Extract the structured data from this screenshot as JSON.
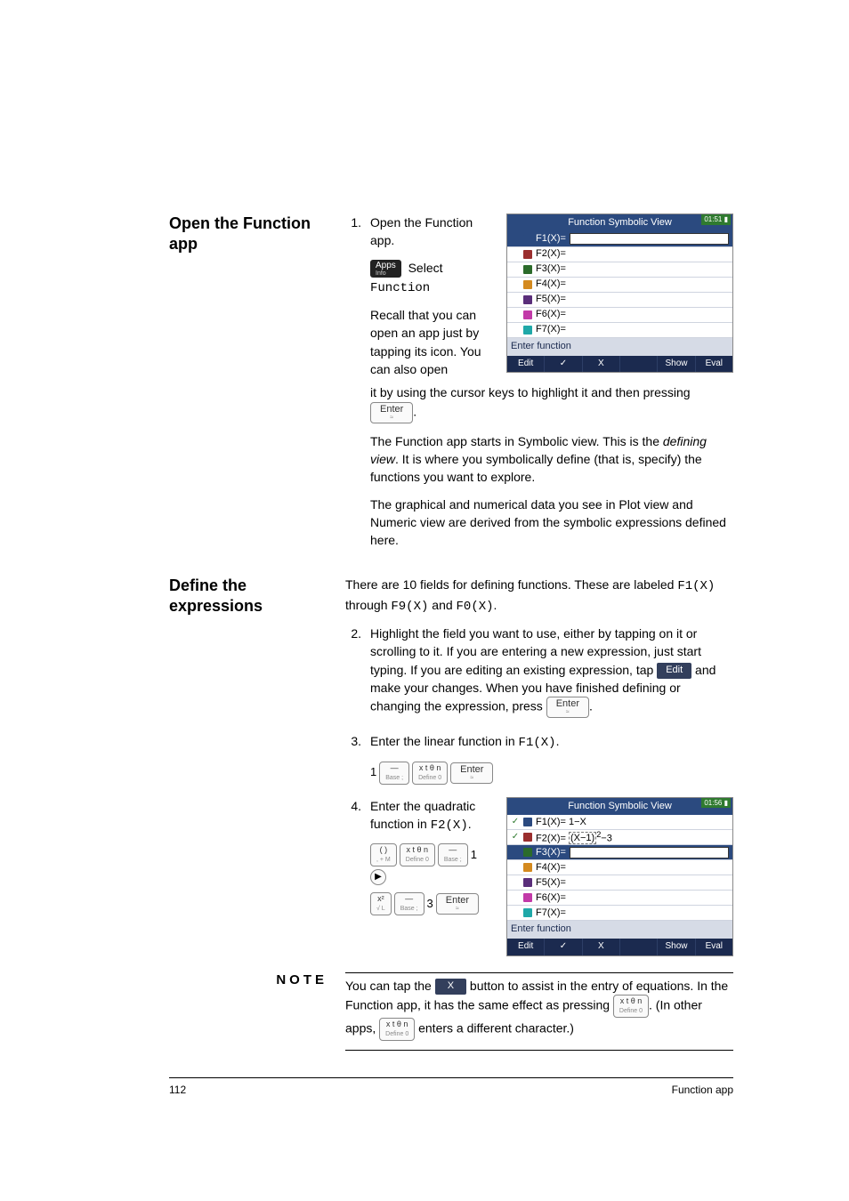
{
  "section1": {
    "heading": "Open the Function app",
    "step_num": "1.",
    "step_text": "Open the Function app.",
    "select_word": "Select",
    "func_word": "Function",
    "apps_key": "Apps",
    "apps_sub": "Info",
    "recall_para": "Recall that you can open an app just by tapping its icon. You can also open it by using the cursor keys to highlight it and then pressing ",
    "recall_para_end": ".",
    "enter_key": "Enter",
    "enter_sub": "≈",
    "para2": "The Function app starts in Symbolic view. This is the ",
    "para2_it": "defining view",
    "para2_rest": ". It is where you symbolically define (that is, specify) the functions you want to explore.",
    "para3": "The graphical and numerical data you see in Plot view and Numeric view are derived from the symbolic expressions defined here."
  },
  "calc1": {
    "title": "Function Symbolic View",
    "time": "01:51",
    "battery": "▮",
    "c1": "#2b4a7f",
    "l1": "F1(X)=",
    "c2": "#9a2e2e",
    "l2": "F2(X)=",
    "c3": "#2b6b2b",
    "l3": "F3(X)=",
    "c4": "#d48a1f",
    "l4": "F4(X)=",
    "c5": "#5a2e7a",
    "l5": "F5(X)=",
    "c6": "#c23aa8",
    "l6": "F6(X)=",
    "c7": "#1fa8a8",
    "l7": "F7(X)=",
    "entry": "Enter function",
    "sk": [
      "Edit",
      "✓",
      "X",
      "",
      "Show",
      "Eval"
    ]
  },
  "section2": {
    "heading": "Define the expressions",
    "intro_a": "There are 10 fields for defining functions. These are labeled ",
    "intro_b": "F1(X)",
    "intro_c": " through ",
    "intro_d": "F9(X)",
    "intro_e": " and ",
    "intro_f": "F0(X)",
    "intro_g": ".",
    "s2num": "2.",
    "s2a": "Highlight the field you want to use, either by tapping on it or scrolling to it. If you are entering a new expression, just start typing. If you are editing an existing expression, tap ",
    "s2_edit": "Edit",
    "s2b": " and make your changes. When you have finished defining or changing the expression, press ",
    "s2end": ".",
    "s3num": "3.",
    "s3": "Enter the linear function in ",
    "s3f": "F1(X)",
    "s3end": ".",
    "keys3_pre": "1",
    "k_neg_top": "—",
    "k_neg_bot": "Base ;",
    "k_xt": "x t θ n",
    "k_xt_bot": "Define 0",
    "s4num": "4.",
    "s4": "Enter the quadratic function in ",
    "s4f": "F2(X)",
    "s4end": ".",
    "k_paren_top": "( )",
    "k_paren_bot": ", + M",
    "k_sq_top": "x²",
    "k_sq_bot": "√   L",
    "keys4_mid": "1",
    "keys4_three": "3"
  },
  "calc2": {
    "title": "Function Symbolic View",
    "time": "01:56",
    "battery": "▮",
    "chk": "✓",
    "c1": "#2b4a7f",
    "l1": "F1(X)= 1−X",
    "c2": "#9a2e2e",
    "l2a": "F2(X)= ",
    "l2b": "(X−1)",
    "l2c": "2",
    "l2d": "−3",
    "c3": "#2b6b2b",
    "l3": "F3(X)=",
    "c4": "#d48a1f",
    "l4": "F4(X)=",
    "c5": "#5a2e7a",
    "l5": "F5(X)=",
    "c6": "#c23aa8",
    "l6": "F6(X)=",
    "c7": "#1fa8a8",
    "l7": "F7(X)=",
    "entry": "Enter function",
    "sk": [
      "Edit",
      "✓",
      "X",
      "",
      "Show",
      "Eval"
    ]
  },
  "note": {
    "head": "NOTE",
    "a": "You can tap the ",
    "x": "X",
    "b": " button to assist in the entry of equations. In the Function app, it has the same effect as pressing ",
    "c": ". (In other apps, ",
    "d": " enters a different character.)"
  },
  "footer": {
    "page": "112",
    "title": "Function app"
  }
}
